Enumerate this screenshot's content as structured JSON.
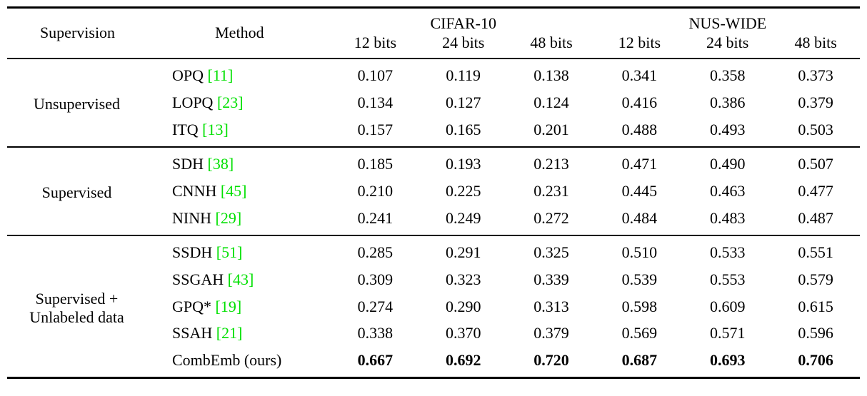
{
  "colors": {
    "background": "#ffffff",
    "text": "#000000",
    "citation": "#00e000",
    "rule": "#000000"
  },
  "table": {
    "headers": {
      "supervision": "Supervision",
      "method": "Method",
      "datasets": [
        {
          "name": "CIFAR-10",
          "bits": [
            "12 bits",
            "24 bits",
            "48 bits"
          ]
        },
        {
          "name": "NUS-WIDE",
          "bits": [
            "12 bits",
            "24 bits",
            "48 bits"
          ]
        }
      ]
    },
    "groups": [
      {
        "supervision": [
          "Unsupervised"
        ],
        "rows": [
          {
            "method": "OPQ",
            "cite": "[11]",
            "values": [
              "0.107",
              "0.119",
              "0.138",
              "0.341",
              "0.358",
              "0.373"
            ],
            "bold": false
          },
          {
            "method": "LOPQ",
            "cite": "[23]",
            "values": [
              "0.134",
              "0.127",
              "0.124",
              "0.416",
              "0.386",
              "0.379"
            ],
            "bold": false
          },
          {
            "method": "ITQ",
            "cite": "[13]",
            "values": [
              "0.157",
              "0.165",
              "0.201",
              "0.488",
              "0.493",
              "0.503"
            ],
            "bold": false
          }
        ]
      },
      {
        "supervision": [
          "Supervised"
        ],
        "rows": [
          {
            "method": "SDH",
            "cite": "[38]",
            "values": [
              "0.185",
              "0.193",
              "0.213",
              "0.471",
              "0.490",
              "0.507"
            ],
            "bold": false
          },
          {
            "method": "CNNH",
            "cite": "[45]",
            "values": [
              "0.210",
              "0.225",
              "0.231",
              "0.445",
              "0.463",
              "0.477"
            ],
            "bold": false
          },
          {
            "method": "NINH",
            "cite": "[29]",
            "values": [
              "0.241",
              "0.249",
              "0.272",
              "0.484",
              "0.483",
              "0.487"
            ],
            "bold": false
          }
        ]
      },
      {
        "supervision": [
          "Supervised +",
          "Unlabeled data"
        ],
        "rows": [
          {
            "method": "SSDH",
            "cite": "[51]",
            "values": [
              "0.285",
              "0.291",
              "0.325",
              "0.510",
              "0.533",
              "0.551"
            ],
            "bold": false
          },
          {
            "method": "SSGAH",
            "cite": "[43]",
            "values": [
              "0.309",
              "0.323",
              "0.339",
              "0.539",
              "0.553",
              "0.579"
            ],
            "bold": false
          },
          {
            "method": "GPQ*",
            "cite": "[19]",
            "values": [
              "0.274",
              "0.290",
              "0.313",
              "0.598",
              "0.609",
              "0.615"
            ],
            "bold": false
          },
          {
            "method": "SSAH",
            "cite": "[21]",
            "values": [
              "0.338",
              "0.370",
              "0.379",
              "0.569",
              "0.571",
              "0.596"
            ],
            "bold": false
          },
          {
            "method": "CombEmb (ours)",
            "cite": null,
            "values": [
              "0.667",
              "0.692",
              "0.720",
              "0.687",
              "0.693",
              "0.706"
            ],
            "bold": true
          }
        ]
      }
    ]
  }
}
